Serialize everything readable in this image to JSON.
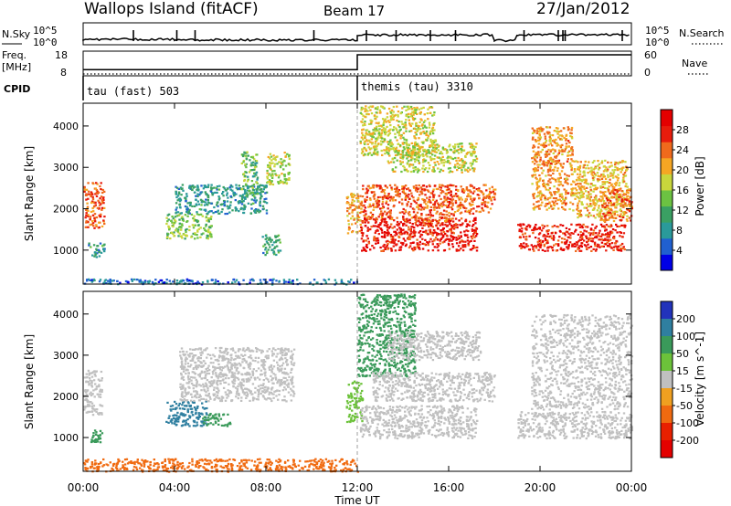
{
  "header": {
    "station": "Wallops Island (fitACF)",
    "beam": "Beam 17",
    "date": "27/Jan/2012"
  },
  "side_labels": {
    "nsky": "N.Sky",
    "freq": "Freq.",
    "freq_unit": "[MHz]",
    "cpid": "CPID",
    "nsearch": "N.Search",
    "nave": "Nave"
  },
  "colors": {
    "white": "#ffffff",
    "black": "#000000",
    "ground": "#c0c0c0"
  },
  "chart_data": [
    {
      "type": "line",
      "name": "noise-panel",
      "y_ticks_left": [
        "10^5",
        "10^0"
      ],
      "y_ticks_right": [
        "10^5",
        "10^0"
      ],
      "x_range_hours": [
        0,
        24
      ],
      "segments": [
        {
          "from": 0,
          "to": 4,
          "level": 0.25
        },
        {
          "from": 4,
          "to": 12,
          "level": 0.22
        },
        {
          "from": 12,
          "to": 18,
          "level": 0.45
        },
        {
          "from": 18,
          "to": 19,
          "level": 0.2
        },
        {
          "from": 19,
          "to": 24,
          "level": 0.45
        }
      ],
      "spikes": [
        2.2,
        4.1,
        4.9,
        10.1,
        12.4,
        13.7,
        15.2,
        16.3,
        19.3,
        20.8,
        21.0,
        21.1,
        23.6
      ]
    },
    {
      "type": "line",
      "name": "frequency-panel",
      "y_ticks_left": [
        "18",
        "8"
      ],
      "y_ticks_right": [
        "60",
        "0"
      ],
      "frequency_segments": [
        {
          "from": 0,
          "to": 12,
          "value": 10.5
        },
        {
          "from": 12,
          "to": 24,
          "value": 16.5
        }
      ],
      "nave_dotted_value": 3
    },
    {
      "type": "table",
      "name": "cpid-panel",
      "modes": [
        {
          "start_hour": 0,
          "label": "tau (fast) 503"
        },
        {
          "start_hour": 12,
          "label": "themis (tau) 3310"
        }
      ]
    },
    {
      "type": "heatmap",
      "name": "power-panel",
      "ylabel": "Slant Range [km]",
      "ylim": [
        180,
        4550
      ],
      "y_ticks": [
        1000,
        2000,
        3000,
        4000
      ],
      "x_range_hours": [
        0,
        24
      ],
      "colorbar": {
        "label": "Power [dB]",
        "ticks": [
          4,
          8,
          12,
          16,
          20,
          24,
          28
        ],
        "range": [
          0,
          32
        ],
        "colors": [
          "#0000e6",
          "#2060d0",
          "#2a9a9a",
          "#3aa063",
          "#6cc242",
          "#c8d63c",
          "#f5a623",
          "#f06a1c",
          "#e81c0c",
          "#e40000"
        ]
      },
      "features": [
        {
          "start": 0.0,
          "end": 0.9,
          "range_top": 2650,
          "range_bottom": 1550,
          "value": 25
        },
        {
          "start": 0.2,
          "end": 0.9,
          "range_top": 1200,
          "range_bottom": 850,
          "value": 9
        },
        {
          "start": 3.6,
          "end": 5.6,
          "range_top": 1900,
          "range_bottom": 1300,
          "value": 15
        },
        {
          "start": 4.0,
          "end": 8.0,
          "range_top": 2600,
          "range_bottom": 1900,
          "value": 9
        },
        {
          "start": 6.9,
          "end": 7.6,
          "range_top": 3400,
          "range_bottom": 2300,
          "value": 13
        },
        {
          "start": 8.0,
          "end": 9.0,
          "range_top": 3400,
          "range_bottom": 2600,
          "value": 17
        },
        {
          "start": 7.8,
          "end": 8.6,
          "range_top": 1400,
          "range_bottom": 900,
          "value": 10
        },
        {
          "start": 11.5,
          "end": 12.2,
          "range_top": 2400,
          "range_bottom": 1400,
          "value": 22
        },
        {
          "start": 12.1,
          "end": 17.2,
          "range_top": 1800,
          "range_bottom": 1000,
          "value": 28
        },
        {
          "start": 12.2,
          "end": 16.2,
          "range_top": 2600,
          "range_bottom": 1700,
          "value": 25
        },
        {
          "start": 16.2,
          "end": 18.0,
          "range_top": 2600,
          "range_bottom": 1900,
          "value": 24
        },
        {
          "start": 13.3,
          "end": 17.2,
          "range_top": 3600,
          "range_bottom": 2900,
          "value": 17
        },
        {
          "start": 12.1,
          "end": 15.4,
          "range_top": 4500,
          "range_bottom": 3300,
          "value": 18
        },
        {
          "start": 19.0,
          "end": 23.7,
          "range_top": 1650,
          "range_bottom": 1000,
          "value": 28
        },
        {
          "start": 19.6,
          "end": 21.4,
          "range_top": 4000,
          "range_bottom": 2000,
          "value": 22
        },
        {
          "start": 21.4,
          "end": 23.8,
          "range_top": 3200,
          "range_bottom": 1800,
          "value": 20
        },
        {
          "start": 22.6,
          "end": 24.0,
          "range_top": 2500,
          "range_bottom": 1700,
          "value": 24
        },
        {
          "start": 0.0,
          "end": 12.0,
          "range_top": 320,
          "range_bottom": 190,
          "value": 6
        }
      ]
    },
    {
      "type": "heatmap",
      "name": "velocity-panel",
      "ylabel": "Slant Range [km]",
      "ylim": [
        180,
        4550
      ],
      "y_ticks": [
        1000,
        2000,
        3000,
        4000
      ],
      "x_range_hours": [
        0,
        24
      ],
      "xlabel": "Time UT",
      "x_tick_labels": [
        "00:00",
        "04:00",
        "08:00",
        "12:00",
        "16:00",
        "20:00",
        "00:00"
      ],
      "colorbar": {
        "label": "Velocity [m s^-1]",
        "ticks": [
          200,
          100,
          50,
          15,
          -15,
          -50,
          -100,
          -200
        ],
        "colors": [
          "#2233bb",
          "#2f7fa0",
          "#3a9a5a",
          "#6cc23a",
          "#c0c0c0",
          "#f0a020",
          "#f06a10",
          "#e82000",
          "#e40000"
        ]
      },
      "features": [
        {
          "start": 0.0,
          "end": 0.8,
          "range_top": 2650,
          "range_bottom": 1550,
          "value": 0
        },
        {
          "start": 0.3,
          "end": 0.8,
          "range_top": 1200,
          "range_bottom": 900,
          "value": 40
        },
        {
          "start": 3.6,
          "end": 5.4,
          "range_top": 1900,
          "range_bottom": 1300,
          "value": 110
        },
        {
          "start": 5.2,
          "end": 6.4,
          "range_top": 1600,
          "range_bottom": 1300,
          "value": 40
        },
        {
          "start": 4.2,
          "end": 9.2,
          "range_top": 3200,
          "range_bottom": 1900,
          "value": 0
        },
        {
          "start": 0.0,
          "end": 12.0,
          "range_top": 500,
          "range_bottom": 190,
          "value": -40
        },
        {
          "start": 11.5,
          "end": 12.2,
          "range_top": 2400,
          "range_bottom": 1400,
          "value": 20
        },
        {
          "start": 12.0,
          "end": 14.5,
          "range_top": 4500,
          "range_bottom": 2500,
          "value": 40
        },
        {
          "start": 12.1,
          "end": 17.2,
          "range_top": 1800,
          "range_bottom": 1000,
          "value": 0
        },
        {
          "start": 12.6,
          "end": 18.0,
          "range_top": 2600,
          "range_bottom": 1900,
          "value": 0
        },
        {
          "start": 13.3,
          "end": 17.4,
          "range_top": 3600,
          "range_bottom": 2900,
          "value": 0
        },
        {
          "start": 19.0,
          "end": 24.0,
          "range_top": 1650,
          "range_bottom": 1000,
          "value": 0
        },
        {
          "start": 19.6,
          "end": 24.0,
          "range_top": 4000,
          "range_bottom": 1700,
          "value": 0
        }
      ]
    }
  ]
}
